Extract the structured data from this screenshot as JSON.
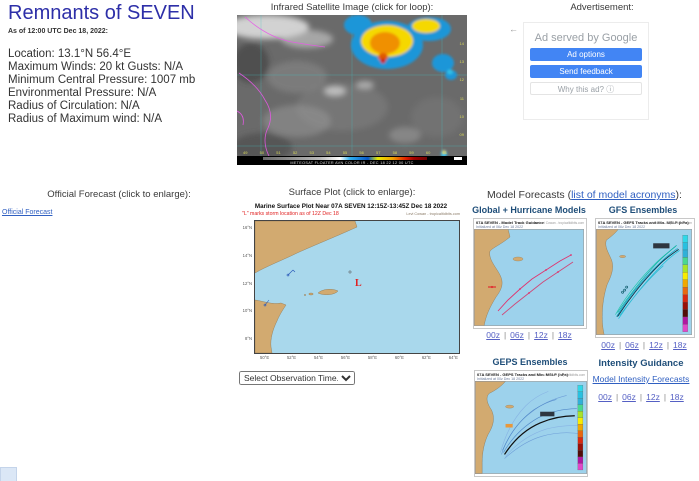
{
  "storm": {
    "title": "Remnants of SEVEN",
    "as_of": "As of 12:00 UTC Dec 18, 2022:",
    "details": [
      "Location: 13.1°N 56.4°E",
      "Maximum Winds: 20 kt  Gusts: N/A",
      "Minimum Central Pressure: 1007 mb",
      "Environmental Pressure: N/A",
      "Radius of Circulation: N/A",
      "Radius of Maximum wind: N/A"
    ]
  },
  "satellite": {
    "header": "Infrared Satellite Image (click for loop):",
    "caption": "METEOSAT FLOATER AVN COLOR IR - DEC 18 22 12 00 UTC",
    "lon_labels": [
      "49",
      "50",
      "51",
      "52",
      "53",
      "54",
      "55",
      "56",
      "57",
      "58",
      "59",
      "60",
      "61"
    ],
    "lat_labels": [
      "14",
      "13",
      "12",
      "11",
      "10",
      "09"
    ]
  },
  "ad": {
    "header": "Advertisement:",
    "served_by": "Ad served by Google",
    "buttons": [
      "Ad options",
      "Send feedback"
    ],
    "why": "Why this ad?"
  },
  "icons": {
    "ad_collapse_arrow": "←",
    "info_circle": "ⓘ"
  },
  "official": {
    "header": "Official Forecast (click to enlarge):",
    "link": "Official Forecast"
  },
  "surface": {
    "header": "Surface Plot (click to enlarge):",
    "title": "Marine Surface Plot Near 07A SEVEN 12:15Z-13:45Z Dec 18 2022",
    "subtitle": "\"L\" marks storm location as of 12Z Dec 18",
    "credit": "Levi Cowan - tropicaltidbits.com",
    "marker": "L",
    "x_labels": [
      "50°E",
      "52°E",
      "54°E",
      "56°E",
      "58°E",
      "60°E",
      "62°E",
      "64°E"
    ],
    "y_labels": [
      "16°N",
      "14°N",
      "12°N",
      "10°N",
      "8°N"
    ],
    "select_label": "Select Observation Time..."
  },
  "models": {
    "header_prefix": "Model Forecasts (",
    "header_link": "list of model acronyms",
    "header_suffix": "):",
    "panels": [
      {
        "heading": "Global + Hurricane Models",
        "map_title": "07A SEVEN - Model Track Guidance",
        "init": "Initialized at 06z Dec 18 2022",
        "credit": "Levi Cowan - tropicaltidbits.com",
        "links": [
          "00z",
          "06z",
          "12z",
          "18z"
        ]
      },
      {
        "heading": "GFS Ensembles",
        "map_title": "07A SEVEN - GEFS Tracks and Min. MSLP (hPa)",
        "init": "Initialized at 06z Dec 18 2022",
        "credit": "Levi Cowan - tropicaltidbits.com",
        "links": [
          "00z",
          "06z",
          "12z",
          "18z"
        ]
      },
      {
        "heading": "GEPS Ensembles",
        "map_title": "07A SEVEN - GEPS Tracks and Min. MSLP (hPa)",
        "init": "Initialized at 00z Dec 18 2022",
        "credit": "Levi Cowan - tropicaltidbits.com"
      }
    ]
  },
  "intensity": {
    "heading": "Intensity Guidance",
    "link": "Model Intensity Forecasts",
    "links": [
      "00z",
      "06z",
      "12z",
      "18z"
    ]
  },
  "colors": {
    "title_blue": "#2d2fa8",
    "header_navy": "#1f4e79",
    "link_blue": "#2f5fc1",
    "zlink_blue": "#5560c4",
    "ad_button_blue": "#4285f4",
    "land_tan": "#d2aa70",
    "ocean_blue": "#a9d8ec",
    "storm_marker_red": "#e02020"
  }
}
